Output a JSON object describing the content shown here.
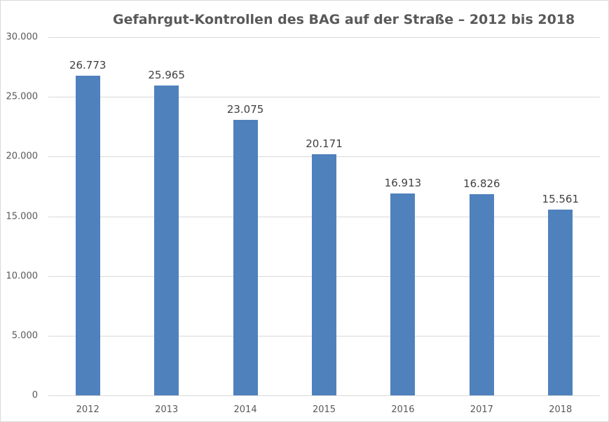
{
  "chart_data": {
    "type": "bar",
    "title": "Gefahrgut-Kontrollen des BAG auf der Straße – 2012 bis 2018",
    "xlabel": "",
    "ylabel": "",
    "categories": [
      "2012",
      "2013",
      "2014",
      "2015",
      "2016",
      "2017",
      "2018"
    ],
    "values": [
      26773,
      25965,
      23075,
      20171,
      16913,
      16826,
      15561
    ],
    "value_labels": [
      "26.773",
      "25.965",
      "23.075",
      "20.171",
      "16.913",
      "16.826",
      "15.561"
    ],
    "ylim": [
      0,
      30000
    ],
    "yticks": [
      0,
      5000,
      10000,
      15000,
      20000,
      25000,
      30000
    ],
    "ytick_labels": [
      "0",
      "5.000",
      "10.000",
      "15.000",
      "20.000",
      "25.000",
      "30.000"
    ],
    "grid": true,
    "legend": null,
    "bar_color": "#4f81bd"
  }
}
